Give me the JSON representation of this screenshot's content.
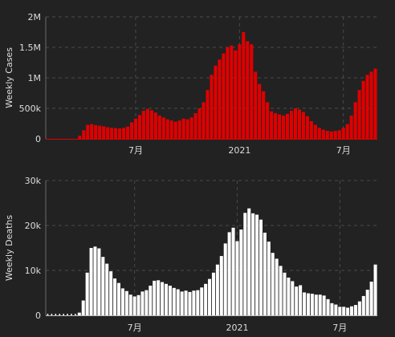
{
  "colors": {
    "background": "#222222",
    "cases_bar": "#e00000",
    "deaths_bar": "#ffffff",
    "text": "#dddddd",
    "grid": "#4a4a4a"
  },
  "chart_data": [
    {
      "type": "bar",
      "ylabel": "Weekly Cases",
      "ylim": [
        0,
        2000000
      ],
      "y_ticks": [
        0,
        500000,
        1000000,
        1500000,
        2000000
      ],
      "y_tick_labels": [
        "0",
        "500k",
        "1M",
        "1.5M",
        "2M"
      ],
      "x_tick_labels": [
        "7月",
        "2021",
        "7月"
      ],
      "x_tick_weeks": [
        22,
        48,
        74
      ],
      "grid": true,
      "legend": "none",
      "values": [
        0,
        0,
        0,
        0,
        0,
        0,
        0,
        0,
        50000,
        140000,
        230000,
        240000,
        225000,
        215000,
        205000,
        190000,
        180000,
        175000,
        170000,
        180000,
        200000,
        270000,
        330000,
        390000,
        460000,
        490000,
        470000,
        430000,
        380000,
        350000,
        320000,
        300000,
        280000,
        300000,
        330000,
        320000,
        350000,
        420000,
        500000,
        600000,
        800000,
        1050000,
        1200000,
        1300000,
        1400000,
        1500000,
        1530000,
        1450000,
        1550000,
        1750000,
        1600000,
        1550000,
        1100000,
        900000,
        780000,
        600000,
        450000,
        420000,
        400000,
        380000,
        410000,
        460000,
        500000,
        480000,
        440000,
        370000,
        290000,
        230000,
        180000,
        150000,
        130000,
        120000,
        130000,
        140000,
        180000,
        240000,
        380000,
        600000,
        800000,
        950000,
        1050000,
        1100000,
        1150000
      ]
    },
    {
      "type": "bar",
      "ylabel": "Weekly Deaths",
      "ylim": [
        0,
        30000
      ],
      "y_ticks": [
        0,
        10000,
        20000,
        30000
      ],
      "y_tick_labels": [
        "0",
        "10k",
        "20k",
        "30k"
      ],
      "x_tick_labels": [
        "7月",
        "2021",
        "7月"
      ],
      "x_tick_weeks": [
        22,
        48,
        74
      ],
      "grid": true,
      "legend": "none",
      "values": [
        0,
        0,
        0,
        0,
        0,
        0,
        0,
        0,
        600,
        3300,
        9500,
        15000,
        15300,
        14900,
        13000,
        11500,
        9800,
        8200,
        7200,
        6000,
        5400,
        4600,
        4200,
        4500,
        5300,
        5600,
        6600,
        7700,
        7800,
        7400,
        7000,
        6600,
        6100,
        5800,
        5300,
        5500,
        5200,
        5500,
        5600,
        6200,
        7000,
        8100,
        9500,
        11300,
        13200,
        16000,
        18500,
        19500,
        16500,
        19100,
        22800,
        23800,
        22700,
        22400,
        21300,
        18400,
        16400,
        13900,
        12600,
        11000,
        9500,
        8400,
        7600,
        6400,
        6700,
        5100,
        4900,
        4800,
        4600,
        4600,
        4400,
        3600,
        2700,
        2400,
        1900,
        1900,
        1700,
        2000,
        2300,
        3100,
        4300,
        5700,
        7500,
        11300
      ]
    }
  ]
}
